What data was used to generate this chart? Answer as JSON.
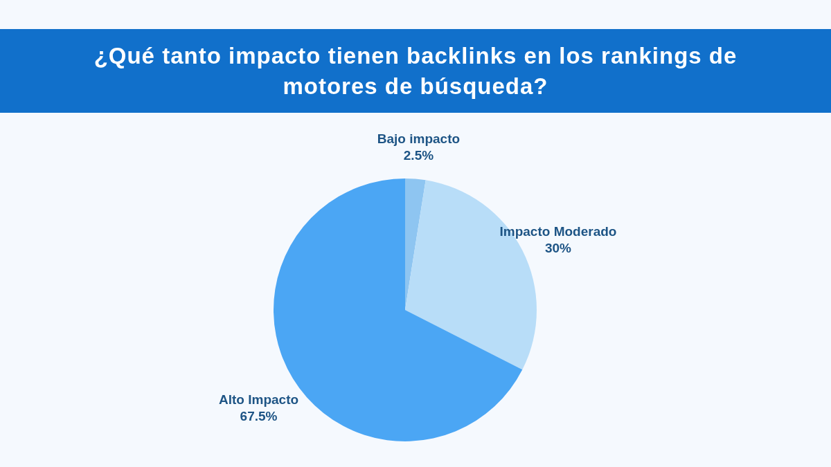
{
  "chart_data": {
    "type": "pie",
    "title": "¿Qué tanto impacto tienen backlinks en los rankings de motores de búsqueda?",
    "categories": [
      "Bajo impacto",
      "Impacto Moderado",
      "Alto Impacto"
    ],
    "values": [
      2.5,
      30,
      67.5
    ],
    "value_labels": [
      "2.5%",
      "30%",
      "67.5%"
    ],
    "colors": [
      "#8ec5f1",
      "#b8ddf8",
      "#4ba6f4"
    ]
  }
}
